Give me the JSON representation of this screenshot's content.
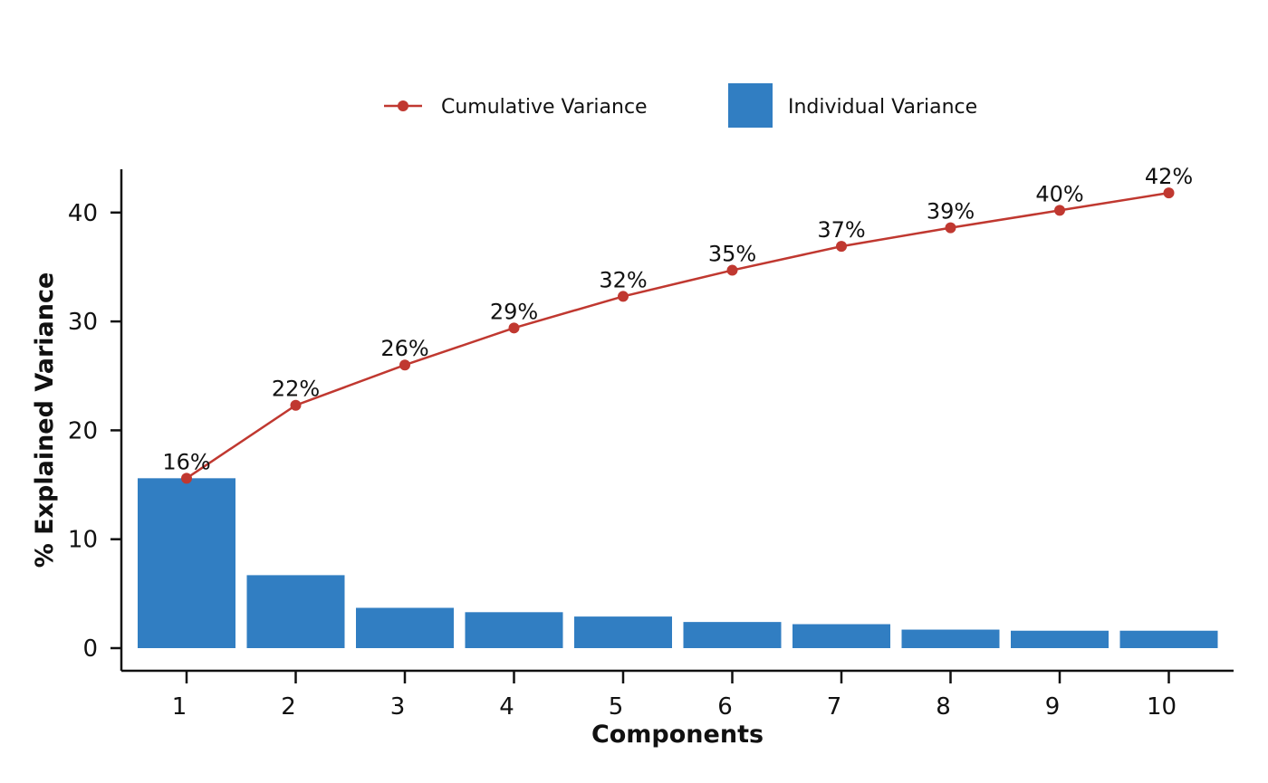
{
  "colors": {
    "bar": "#317ec2",
    "line": "#c03830",
    "axis": "#111111"
  },
  "legend": {
    "cumulative_label": "Cumulative Variance",
    "individual_label": "Individual Variance"
  },
  "chart_data": {
    "type": "bar",
    "categories": [
      "1",
      "2",
      "3",
      "4",
      "5",
      "6",
      "7",
      "8",
      "9",
      "10"
    ],
    "series": [
      {
        "name": "Individual Variance",
        "type": "bar",
        "values": [
          15.6,
          6.7,
          3.7,
          3.3,
          2.9,
          2.4,
          2.2,
          1.7,
          1.6,
          1.6
        ]
      },
      {
        "name": "Cumulative Variance",
        "type": "line",
        "values": [
          15.6,
          22.3,
          26.0,
          29.4,
          32.3,
          34.7,
          36.9,
          38.6,
          40.2,
          41.8
        ],
        "labels": [
          "16%",
          "22%",
          "26%",
          "29%",
          "32%",
          "35%",
          "37%",
          "39%",
          "40%",
          "42%"
        ]
      }
    ],
    "xlabel": "Components",
    "ylabel": "% Explained Variance",
    "yticks": [
      0,
      10,
      20,
      30,
      40
    ],
    "ylim": [
      -2,
      44
    ],
    "grid": false,
    "legend_position": "top"
  }
}
